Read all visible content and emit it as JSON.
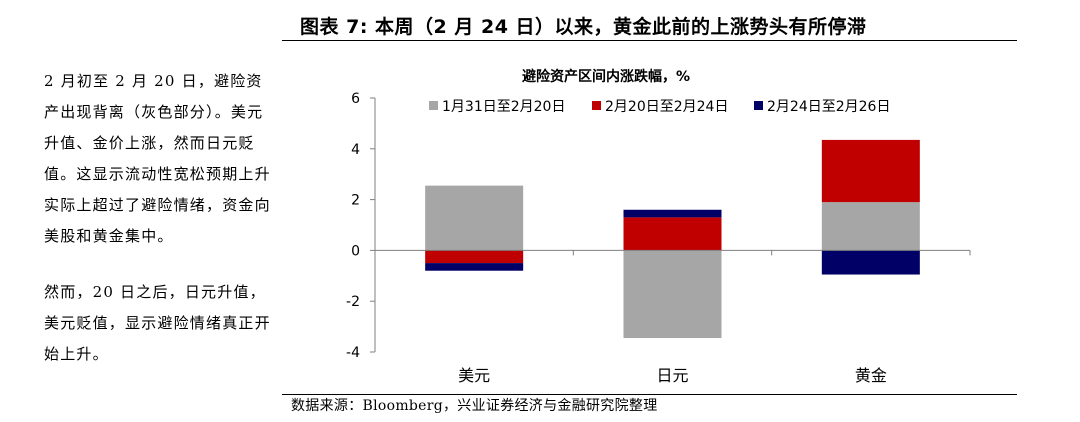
{
  "figure": {
    "title": "图表 7: 本周（2 月 24 日）以来，黄金此前的上涨势头有所停滞",
    "source": "数据来源：Bloomberg，兴业证券经济与金融研究院整理"
  },
  "commentary": {
    "p1": "2 月初至 2 月 20 日，避险资产出现背离（灰色部分）。美元升值、金价上涨，然而日元贬值。这显示流动性宽松预期上升实际上超过了避险情绪，资金向美股和黄金集中。",
    "p2": "然而，20 日之后，日元升值，美元贬值，显示避险情绪真正开始上升。"
  },
  "chart_data": {
    "type": "bar",
    "stacked": true,
    "title": "避险资产区间内涨跌幅，%",
    "categories": [
      "美元",
      "日元",
      "黄金"
    ],
    "series": [
      {
        "name": "1月31日至2月20日",
        "values": [
          2.55,
          -3.45,
          1.9
        ],
        "color": "#a6a6a6"
      },
      {
        "name": "2月20日至2月24日",
        "values": [
          -0.5,
          1.3,
          2.45
        ],
        "color": "#c00000"
      },
      {
        "name": "2月24日至2月26日",
        "values": [
          -0.3,
          0.3,
          -0.95
        ],
        "color": "#000066"
      }
    ],
    "ylim": [
      -4,
      6
    ],
    "yticks": [
      -4,
      -2,
      0,
      2,
      4,
      6
    ],
    "legend_position": "top",
    "grid": false
  }
}
